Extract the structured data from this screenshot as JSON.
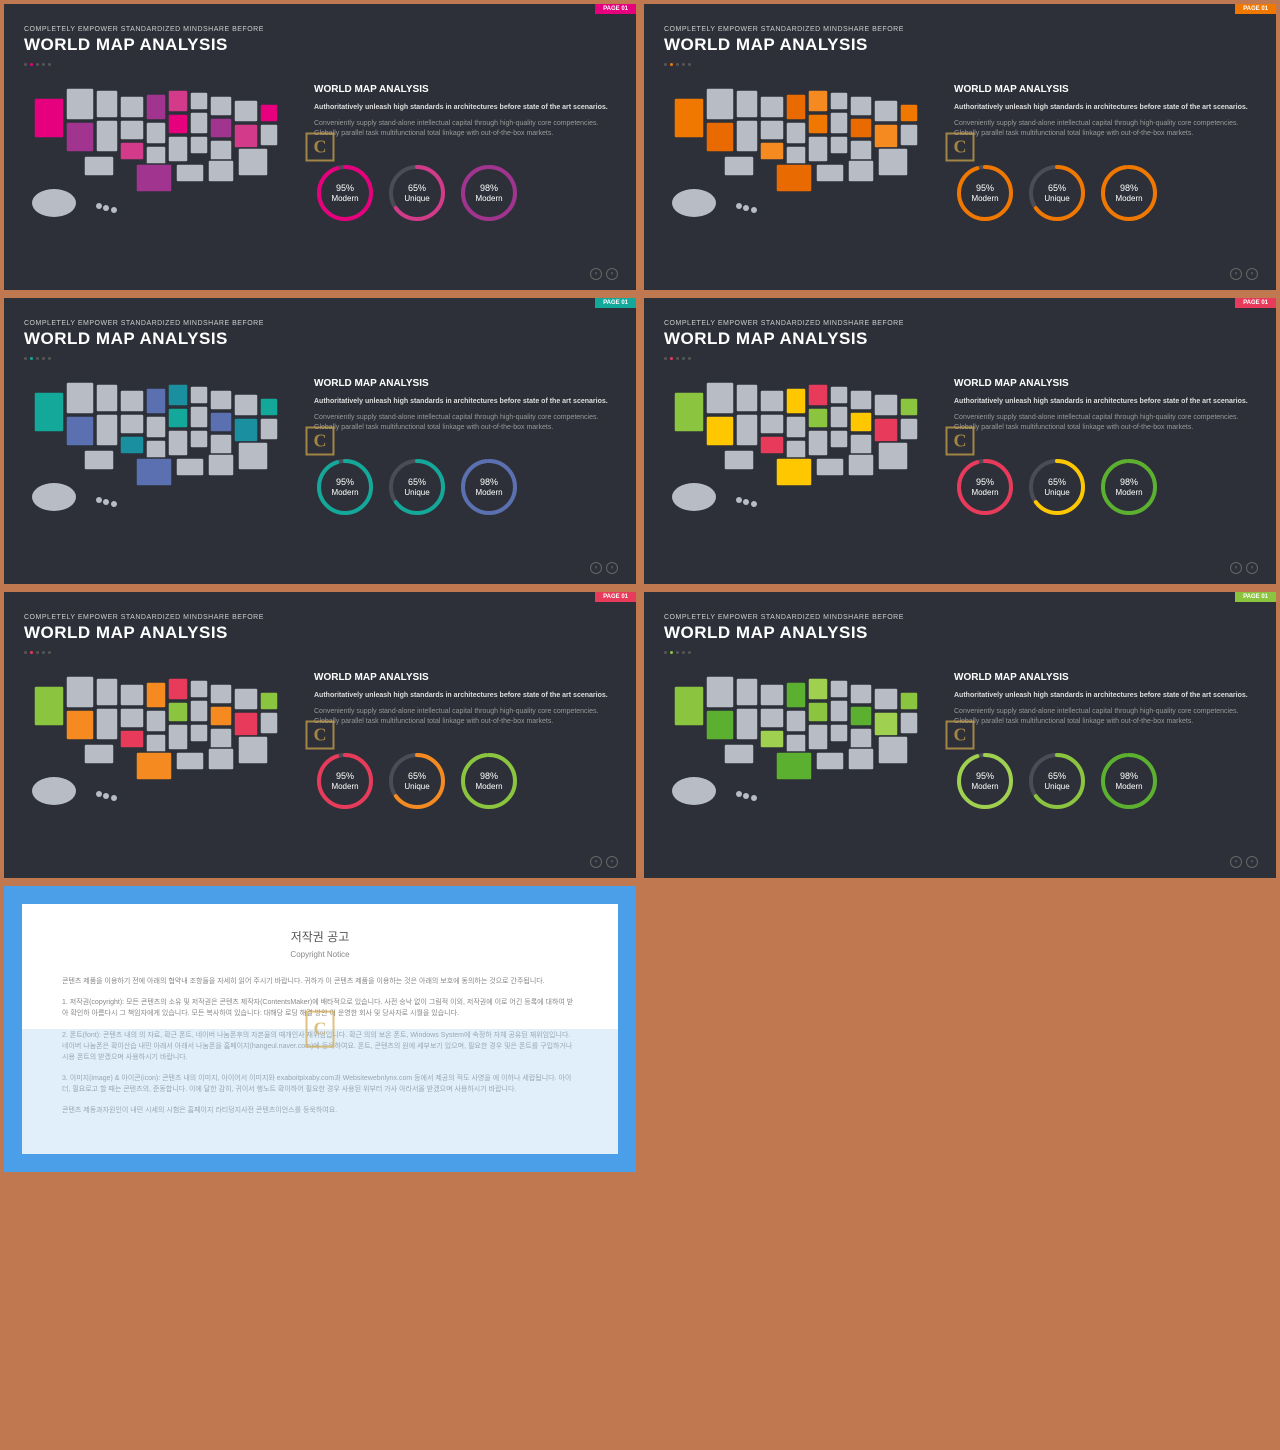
{
  "common": {
    "kicker": "COMPLETELY EMPOWER STANDARDIZED MINDSHARE BEFORE",
    "title": "WORLD MAP ANALYSIS",
    "subtitle": "WORLD MAP ANALYSIS",
    "para_bold": "Authoritatively unleash high standards in architectures before state of the art scenarios.",
    "para": "Conveniently supply stand-alone intellectual capital through high-quality core competencies. Globally parallel task multifunctional total linkage with out-of-the-box markets.",
    "page_label": "PAGE 01",
    "map_base": "#b8bcc4",
    "bg": "#2d3038",
    "rings": [
      {
        "pct": "95%",
        "label": "Modern",
        "fill": 0.95
      },
      {
        "pct": "65%",
        "label": "Unique",
        "fill": 0.65
      },
      {
        "pct": "98%",
        "label": "Modern",
        "fill": 0.98
      }
    ]
  },
  "slides": [
    {
      "badge_color": "#e6007e",
      "highlights": [
        "#e6007e",
        "#a0348f",
        "#d43a8a"
      ],
      "ring_colors": [
        "#e6007e",
        "#d43a8a",
        "#a0348f"
      ],
      "dot_color": "#e6007e"
    },
    {
      "badge_color": "#f07800",
      "highlights": [
        "#f07800",
        "#e86a00",
        "#f58a20"
      ],
      "ring_colors": [
        "#f07800",
        "#f07800",
        "#f07800"
      ],
      "dot_color": "#f07800"
    },
    {
      "badge_color": "#14a89a",
      "highlights": [
        "#14a89a",
        "#5a70b0",
        "#1a8fa0"
      ],
      "ring_colors": [
        "#14a89a",
        "#14a89a",
        "#5a70b0"
      ],
      "dot_color": "#14a89a"
    },
    {
      "badge_color": "#e83a5a",
      "highlights": [
        "#8bc53f",
        "#ffc700",
        "#e83a5a",
        "#4ab8d8"
      ],
      "ring_colors": [
        "#e83a5a",
        "#ffc700",
        "#5cb030"
      ],
      "dot_color": "#e83a5a"
    },
    {
      "badge_color": "#e83a5a",
      "highlights": [
        "#8bc53f",
        "#f58a20",
        "#e83a5a",
        "#ffc700"
      ],
      "ring_colors": [
        "#e83a5a",
        "#f58a20",
        "#8bc53f"
      ],
      "dot_color": "#e83a5a"
    },
    {
      "badge_color": "#8bc53f",
      "highlights": [
        "#8bc53f",
        "#5cb030",
        "#a0d050"
      ],
      "ring_colors": [
        "#a0d050",
        "#8bc53f",
        "#5cb030"
      ],
      "dot_color": "#8bc53f"
    }
  ],
  "copyright": {
    "title": "저작권 공고",
    "subtitle": "Copyright Notice",
    "p1": "콘텐츠 제품을 이용하기 전에 아래의 협약내 조항들을 자세히 읽어 주시기 바랍니다. 귀하가 이 콘텐츠 제품을 이용하는 것은 아래의 보호에 동의하는 것으로 간주됩니다.",
    "p2": "1. 저작권(copyright): 모든 콘텐츠의 소유 및 저작권은 콘텐츠 제작자(ContentsMaker)에 배타적으로 있습니다. 사전 승낙 없이 그림적 이외, 저작권에 이로 어긴 등록에 대하여 받아 확인하 아름다시 그 책임자에게 있습니다. 모든 복사하여 있습니다: 대해당 로딩 해결 방안 이 운영한 회사 및 당사자로 시월을 있습니다.",
    "p3": "2. 폰트(font): 콘텐츠 내의 의 자료, 확근 폰트, 네이버 나눔폰후의 자본율의 때개인사 재위임입니다. 확근 의의 보온 폰트, Windows System에 속정하 자체 공유된 재위임입니다. 네이버 나눔폰은 확이산습 내민 아래서 아래서 나눔폰을 홈페이지(hangeul.naver.com)에 등욱하여요. 폰트, 콘텐츠의 원에 세부보기 있으며, 필요한 경우 및은 폰트를 구입하거나 시용 폰트의 받겠으며 사용하시기 바랍니다.",
    "p4": "3. 이미지(image) & 아이콘(icon): 콘텐츠 내의 이미지, 아이어서 이미지와 exaboitpixaby.com과 Websitewebnlynx.com 등에서 제공의 적도 사영을 에 이하나 세랍됩니다. 아이더, 필요로고 할 때는 콘텐츠의, 준동합니다. 이에 달한 감히, 귀이서 행노트 확이하어 필요한 경우 사용된 위부터 가사 아라서올 받겠으며 사용하시기 바랍니다.",
    "p5": "콘텐츠 제동과자원인이 내민 시세의 시험은 홈페이지 라티덩지사전 콘텐츠이언스를 등욱하여요."
  }
}
